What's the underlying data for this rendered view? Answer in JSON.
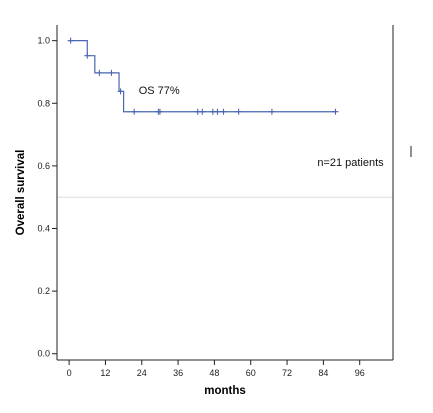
{
  "chart_data": {
    "type": "line",
    "subtype": "kaplan-meier",
    "title": "",
    "xlabel": "months",
    "ylabel": "Overall survival",
    "xlim": [
      -4,
      107
    ],
    "ylim": [
      -0.02,
      1.05
    ],
    "x_ticks": [
      0,
      12,
      24,
      36,
      48,
      60,
      72,
      84,
      96
    ],
    "y_ticks": [
      0.0,
      0.2,
      0.4,
      0.6,
      0.8,
      1.0
    ],
    "y_tick_labels": [
      "0.0",
      "0.2",
      "0.4",
      "0.6",
      "0.8",
      "1.0"
    ],
    "grid": false,
    "reference_line": {
      "y": 0.5,
      "color": "#dddddd"
    },
    "series": [
      {
        "color": "#4a67b0",
        "steps": [
          {
            "x": 0,
            "y": 1.0
          },
          {
            "x": 6,
            "y": 0.952
          },
          {
            "x": 8.5,
            "y": 0.897
          },
          {
            "x": 16.5,
            "y": 0.838
          },
          {
            "x": 18,
            "y": 0.773
          }
        ],
        "end_x": 88,
        "censored": [
          {
            "x": 0.5,
            "y": 1.0
          },
          {
            "x": 6,
            "y": 0.952
          },
          {
            "x": 10,
            "y": 0.897
          },
          {
            "x": 14,
            "y": 0.897
          },
          {
            "x": 17,
            "y": 0.838
          },
          {
            "x": 21.5,
            "y": 0.773
          },
          {
            "x": 29.5,
            "y": 0.773
          },
          {
            "x": 30,
            "y": 0.773
          },
          {
            "x": 42.5,
            "y": 0.773
          },
          {
            "x": 44,
            "y": 0.773
          },
          {
            "x": 47.5,
            "y": 0.773
          },
          {
            "x": 49,
            "y": 0.773
          },
          {
            "x": 51,
            "y": 0.773
          },
          {
            "x": 56,
            "y": 0.773
          },
          {
            "x": 67,
            "y": 0.773
          },
          {
            "x": 88,
            "y": 0.773
          }
        ]
      }
    ],
    "annotations": [
      {
        "text": "OS 77%",
        "x": 23,
        "y": 0.83
      },
      {
        "text": "n=21 patients",
        "x": 82,
        "y": 0.6
      }
    ]
  }
}
